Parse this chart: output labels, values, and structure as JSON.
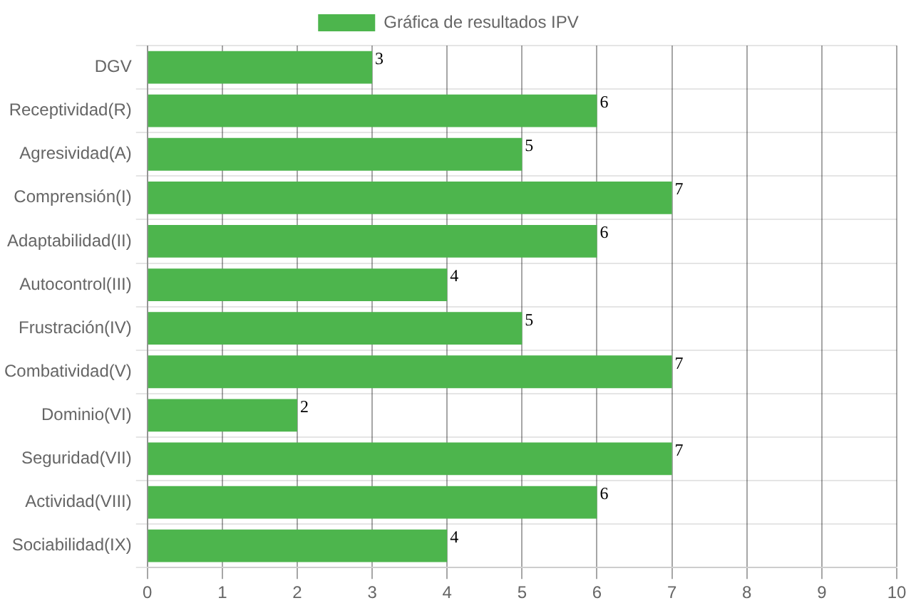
{
  "chart_data": {
    "type": "bar",
    "orientation": "horizontal",
    "categories": [
      "DGV",
      "Receptividad(R)",
      "Agresividad(A)",
      "Comprensión(I)",
      "Adaptabilidad(II)",
      "Autocontrol(III)",
      "Frustración(IV)",
      "Combatividad(V)",
      "Dominio(VI)",
      "Seguridad(VII)",
      "Actividad(VIII)",
      "Sociabilidad(IX)"
    ],
    "series": [
      {
        "name": "Gráfica de resultados IPV",
        "color": "#4db54d",
        "values": [
          3,
          6,
          5,
          7,
          6,
          4,
          5,
          7,
          2,
          7,
          6,
          4
        ]
      }
    ],
    "xlim": [
      0,
      10
    ],
    "xticks": [
      0,
      1,
      2,
      3,
      4,
      5,
      6,
      7,
      8,
      9,
      10
    ],
    "grid": true,
    "legend": "top",
    "data_labels": true
  }
}
